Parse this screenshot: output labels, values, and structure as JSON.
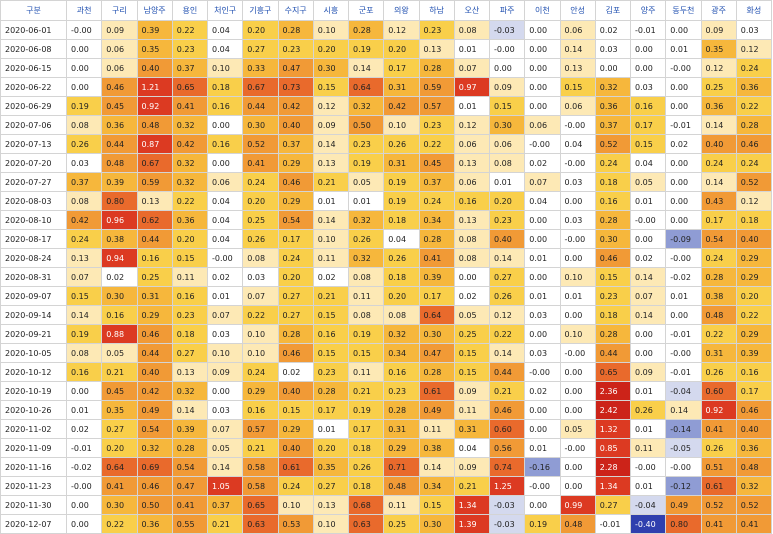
{
  "chart_data": {
    "type": "heatmap",
    "corner_label": "구분",
    "columns": [
      "과천",
      "구리",
      "남양주",
      "용인",
      "처인구",
      "기흥구",
      "수지구",
      "시흥",
      "군포",
      "의왕",
      "하남",
      "오산",
      "파주",
      "이천",
      "안성",
      "김포",
      "양주",
      "동두천",
      "광주",
      "화성"
    ],
    "rows": [
      "2020-06-01",
      "2020-06-08",
      "2020-06-15",
      "2020-06-22",
      "2020-06-29",
      "2020-07-06",
      "2020-07-13",
      "2020-07-20",
      "2020-07-27",
      "2020-08-03",
      "2020-08-10",
      "2020-08-17",
      "2020-08-24",
      "2020-08-31",
      "2020-09-07",
      "2020-09-14",
      "2020-09-21",
      "2020-10-05",
      "2020-10-12",
      "2020-10-19",
      "2020-10-26",
      "2020-11-02",
      "2020-11-09",
      "2020-11-16",
      "2020-11-23",
      "2020-11-30",
      "2020-12-07"
    ],
    "values": [
      [
        "-0.00",
        "0.09",
        "0.39",
        "0.22",
        "0.04",
        "0.20",
        "0.28",
        "0.10",
        "0.28",
        "0.12",
        "0.23",
        "0.08",
        "-0.03",
        "0.00",
        "0.06",
        "0.02",
        "-0.01",
        "0.00",
        "0.09",
        "0.03"
      ],
      [
        "0.00",
        "0.06",
        "0.35",
        "0.23",
        "0.04",
        "0.27",
        "0.23",
        "0.20",
        "0.19",
        "0.20",
        "0.13",
        "0.01",
        "-0.00",
        "0.00",
        "0.14",
        "0.03",
        "0.00",
        "0.01",
        "0.35",
        "0.12"
      ],
      [
        "0.00",
        "0.06",
        "0.40",
        "0.37",
        "0.10",
        "0.33",
        "0.47",
        "0.30",
        "0.14",
        "0.17",
        "0.28",
        "0.07",
        "0.00",
        "0.00",
        "0.13",
        "0.00",
        "0.00",
        "-0.00",
        "0.12",
        "0.24"
      ],
      [
        "0.00",
        "0.46",
        "1.21",
        "0.65",
        "0.18",
        "0.67",
        "0.73",
        "0.15",
        "0.64",
        "0.31",
        "0.59",
        "0.97",
        "0.09",
        "0.00",
        "0.15",
        "0.32",
        "0.03",
        "0.00",
        "0.25",
        "0.36"
      ],
      [
        "0.19",
        "0.45",
        "0.92",
        "0.41",
        "0.16",
        "0.44",
        "0.42",
        "0.12",
        "0.32",
        "0.42",
        "0.57",
        "0.01",
        "0.15",
        "0.00",
        "0.06",
        "0.36",
        "0.16",
        "0.00",
        "0.36",
        "0.22"
      ],
      [
        "0.08",
        "0.36",
        "0.48",
        "0.32",
        "0.00",
        "0.30",
        "0.40",
        "0.09",
        "0.50",
        "0.10",
        "0.23",
        "0.12",
        "0.30",
        "0.06",
        "-0.00",
        "0.37",
        "0.17",
        "-0.01",
        "0.14",
        "0.28"
      ],
      [
        "0.26",
        "0.44",
        "0.87",
        "0.42",
        "0.16",
        "0.52",
        "0.37",
        "0.14",
        "0.23",
        "0.26",
        "0.22",
        "0.06",
        "0.06",
        "-0.00",
        "0.04",
        "0.52",
        "0.15",
        "0.02",
        "0.40",
        "0.46"
      ],
      [
        "0.03",
        "0.48",
        "0.67",
        "0.32",
        "0.00",
        "0.41",
        "0.29",
        "0.13",
        "0.19",
        "0.31",
        "0.45",
        "0.13",
        "0.08",
        "0.02",
        "-0.00",
        "0.24",
        "0.04",
        "0.00",
        "0.24",
        "0.24"
      ],
      [
        "0.37",
        "0.39",
        "0.59",
        "0.32",
        "0.06",
        "0.24",
        "0.46",
        "0.21",
        "0.05",
        "0.19",
        "0.37",
        "0.06",
        "0.01",
        "0.07",
        "0.03",
        "0.18",
        "0.05",
        "0.00",
        "0.14",
        "0.52"
      ],
      [
        "0.08",
        "0.80",
        "0.13",
        "0.22",
        "0.04",
        "0.20",
        "0.29",
        "0.01",
        "0.01",
        "0.19",
        "0.24",
        "0.16",
        "0.20",
        "0.04",
        "0.00",
        "0.16",
        "0.01",
        "0.00",
        "0.43",
        "0.12"
      ],
      [
        "0.42",
        "0.96",
        "0.62",
        "0.36",
        "0.04",
        "0.25",
        "0.54",
        "0.14",
        "0.32",
        "0.18",
        "0.34",
        "0.13",
        "0.23",
        "0.00",
        "0.03",
        "0.28",
        "-0.00",
        "0.00",
        "0.17",
        "0.18"
      ],
      [
        "0.24",
        "0.38",
        "0.44",
        "0.20",
        "0.04",
        "0.26",
        "0.17",
        "0.10",
        "0.26",
        "0.04",
        "0.28",
        "0.08",
        "0.40",
        "0.00",
        "-0.00",
        "0.30",
        "0.00",
        "-0.09",
        "0.54",
        "0.40"
      ],
      [
        "0.13",
        "0.94",
        "0.16",
        "0.15",
        "-0.00",
        "0.08",
        "0.24",
        "0.11",
        "0.32",
        "0.26",
        "0.41",
        "0.08",
        "0.14",
        "0.01",
        "0.00",
        "0.46",
        "0.02",
        "-0.00",
        "0.24",
        "0.29"
      ],
      [
        "0.07",
        "0.02",
        "0.25",
        "0.11",
        "0.02",
        "0.03",
        "0.20",
        "0.02",
        "0.08",
        "0.18",
        "0.39",
        "0.00",
        "0.27",
        "0.00",
        "0.10",
        "0.15",
        "0.14",
        "-0.02",
        "0.28",
        "0.29"
      ],
      [
        "0.15",
        "0.30",
        "0.31",
        "0.16",
        "0.01",
        "0.07",
        "0.27",
        "0.21",
        "0.11",
        "0.20",
        "0.17",
        "0.02",
        "0.26",
        "0.01",
        "0.01",
        "0.23",
        "0.07",
        "0.01",
        "0.38",
        "0.20"
      ],
      [
        "0.14",
        "0.16",
        "0.29",
        "0.23",
        "0.07",
        "0.22",
        "0.27",
        "0.15",
        "0.08",
        "0.08",
        "0.64",
        "0.05",
        "0.12",
        "0.03",
        "0.00",
        "0.18",
        "0.14",
        "0.00",
        "0.48",
        "0.22"
      ],
      [
        "0.19",
        "0.88",
        "0.46",
        "0.18",
        "0.03",
        "0.10",
        "0.28",
        "0.16",
        "0.19",
        "0.32",
        "0.30",
        "0.25",
        "0.22",
        "0.00",
        "0.10",
        "0.28",
        "0.00",
        "-0.01",
        "0.22",
        "0.29"
      ],
      [
        "0.08",
        "0.05",
        "0.44",
        "0.27",
        "0.10",
        "0.10",
        "0.46",
        "0.15",
        "0.15",
        "0.34",
        "0.47",
        "0.15",
        "0.14",
        "0.03",
        "-0.00",
        "0.44",
        "0.00",
        "-0.00",
        "0.31",
        "0.39"
      ],
      [
        "0.16",
        "0.21",
        "0.40",
        "0.13",
        "0.09",
        "0.24",
        "0.02",
        "0.23",
        "0.11",
        "0.16",
        "0.28",
        "0.15",
        "0.44",
        "-0.00",
        "0.00",
        "0.65",
        "0.09",
        "-0.01",
        "0.26",
        "0.16"
      ],
      [
        "0.00",
        "0.45",
        "0.42",
        "0.32",
        "0.00",
        "0.29",
        "0.40",
        "0.28",
        "0.21",
        "0.23",
        "0.61",
        "0.09",
        "0.21",
        "0.02",
        "0.00",
        "2.36",
        "0.01",
        "-0.04",
        "0.60",
        "0.17"
      ],
      [
        "0.01",
        "0.35",
        "0.49",
        "0.14",
        "0.03",
        "0.16",
        "0.15",
        "0.17",
        "0.19",
        "0.28",
        "0.49",
        "0.11",
        "0.46",
        "0.00",
        "0.00",
        "2.42",
        "0.26",
        "0.14",
        "0.92",
        "0.46"
      ],
      [
        "0.02",
        "0.27",
        "0.54",
        "0.39",
        "0.07",
        "0.57",
        "0.29",
        "0.01",
        "0.17",
        "0.31",
        "0.11",
        "0.31",
        "0.60",
        "0.00",
        "0.05",
        "1.32",
        "0.01",
        "-0.14",
        "0.41",
        "0.40"
      ],
      [
        "-0.01",
        "0.20",
        "0.32",
        "0.28",
        "0.05",
        "0.21",
        "0.40",
        "0.20",
        "0.18",
        "0.29",
        "0.38",
        "0.04",
        "0.56",
        "0.01",
        "-0.00",
        "0.85",
        "0.11",
        "-0.05",
        "0.26",
        "0.36"
      ],
      [
        "-0.02",
        "0.64",
        "0.69",
        "0.54",
        "0.14",
        "0.58",
        "0.61",
        "0.35",
        "0.26",
        "0.71",
        "0.14",
        "0.09",
        "0.74",
        "-0.16",
        "0.00",
        "2.28",
        "-0.00",
        "-0.00",
        "0.51",
        "0.48"
      ],
      [
        "-0.00",
        "0.41",
        "0.46",
        "0.47",
        "1.05",
        "0.58",
        "0.24",
        "0.27",
        "0.18",
        "0.48",
        "0.34",
        "0.21",
        "1.25",
        "-0.00",
        "0.00",
        "1.34",
        "0.01",
        "-0.12",
        "0.61",
        "0.32"
      ],
      [
        "0.00",
        "0.30",
        "0.50",
        "0.41",
        "0.37",
        "0.65",
        "0.10",
        "0.13",
        "0.68",
        "0.11",
        "0.15",
        "1.34",
        "-0.03",
        "0.00",
        "0.99",
        "0.27",
        "-0.04",
        "0.49",
        "0.52",
        "0.52"
      ],
      [
        "0.00",
        "0.22",
        "0.36",
        "0.55",
        "0.21",
        "0.63",
        "0.53",
        "0.10",
        "0.63",
        "0.25",
        "0.30",
        "1.39",
        "-0.03",
        "0.19",
        "0.48",
        "-0.01",
        "-0.40",
        "0.80",
        "0.41",
        "0.41"
      ]
    ],
    "colors": {
      "negative_strong": "#2f3fae",
      "negative_mid": "#8f9cd4",
      "negative_light": "#d4d9ee",
      "near_zero": "#ffffff",
      "low": "#fde9b5",
      "mid_low": "#f9cf4a",
      "mid": "#f6b73c",
      "mid_high": "#f19a36",
      "high": "#e96a2c",
      "very_high": "#dc3a22",
      "extreme": "#cc2319",
      "header_text": "#1f4fb0",
      "grid": "#d4d4d4"
    }
  }
}
